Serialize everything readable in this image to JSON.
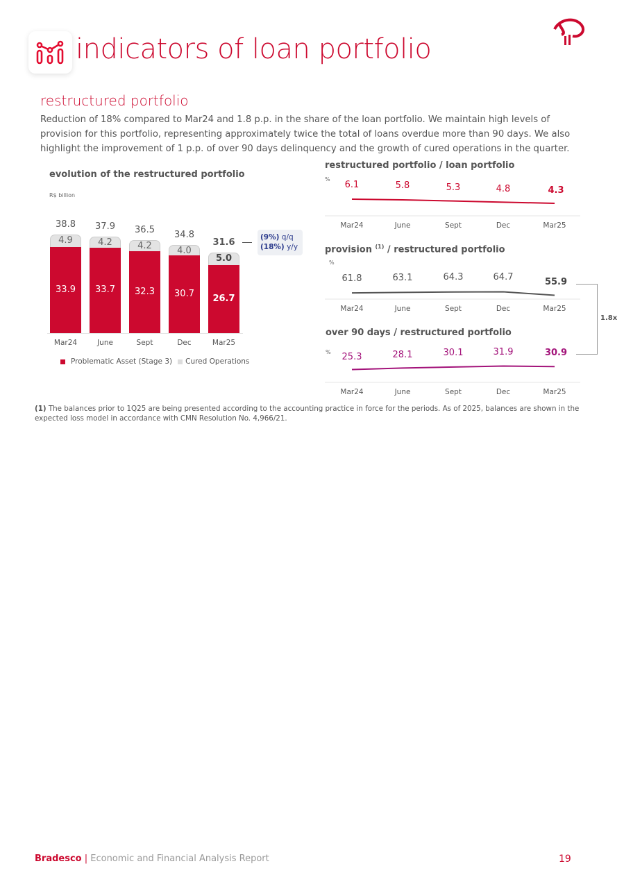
{
  "header": {
    "title": "indicators of loan portfolio",
    "logo": "Bradesco"
  },
  "section": {
    "subtitle": "restructured portfolio",
    "intro": "Reduction of 18% compared to Mar24 and 1.8 p.p. in the share of the loan portfolio. We maintain high levels of provision for this portfolio, representing approximately twice the total of loans overdue more than 90 days. We also highlight the improvement of 1 p.p. of over 90 days delinquency and the growth of cured operations in the quarter."
  },
  "chart_data": [
    {
      "type": "bar",
      "title": "evolution of the restructured portfolio",
      "unit": "R$ billion",
      "categories": [
        "Mar24",
        "June",
        "Sept",
        "Dec",
        "Mar25"
      ],
      "series": [
        {
          "name": "Problematic Asset (Stage 3)",
          "values": [
            33.9,
            33.7,
            32.3,
            30.7,
            26.7
          ],
          "color": "#cc092f"
        },
        {
          "name": "Cured Operations",
          "values": [
            4.9,
            4.2,
            4.2,
            4.0,
            5.0
          ],
          "color": "#e0e0e0"
        }
      ],
      "totals": [
        "38.8",
        "37.9",
        "36.5",
        "34.8",
        "31.6"
      ],
      "annotation": {
        "qq_value": "(9%)",
        "qq_label": "q/q",
        "yy_value": "(18%)",
        "yy_label": "y/y"
      }
    },
    {
      "type": "line",
      "title": "restructured portfolio / loan portfolio",
      "unit": "%",
      "categories": [
        "Mar24",
        "June",
        "Sept",
        "Dec",
        "Mar25"
      ],
      "values": [
        6.1,
        5.8,
        5.3,
        4.8,
        4.3
      ],
      "color": "#cc092f"
    },
    {
      "type": "line",
      "title": "provision",
      "title_sup": "(1)",
      "title_rest": "/ restructured portfolio",
      "unit": "%",
      "categories": [
        "Mar24",
        "June",
        "Sept",
        "Dec",
        "Mar25"
      ],
      "values": [
        61.8,
        63.1,
        64.3,
        64.7,
        55.9
      ],
      "color": "#555555"
    },
    {
      "type": "line",
      "title": "over 90 days / restructured portfolio",
      "unit": "%",
      "categories": [
        "Mar24",
        "June",
        "Sept",
        "Dec",
        "Mar25"
      ],
      "values": [
        25.3,
        28.1,
        30.1,
        31.9,
        30.9
      ],
      "color": "#a3137a"
    }
  ],
  "ratio_label": "1.8x",
  "footnote": {
    "marker": "(1)",
    "text": " The balances prior to 1Q25 are being presented according to the accounting practice in force for the periods. As of 2025, balances are shown in the expected loss model in accordance with CMN Resolution No. 4,966/21."
  },
  "footer": {
    "brand": "Bradesco",
    "separator": " | ",
    "report": "Economic and Financial Analysis Report",
    "page": "19"
  }
}
